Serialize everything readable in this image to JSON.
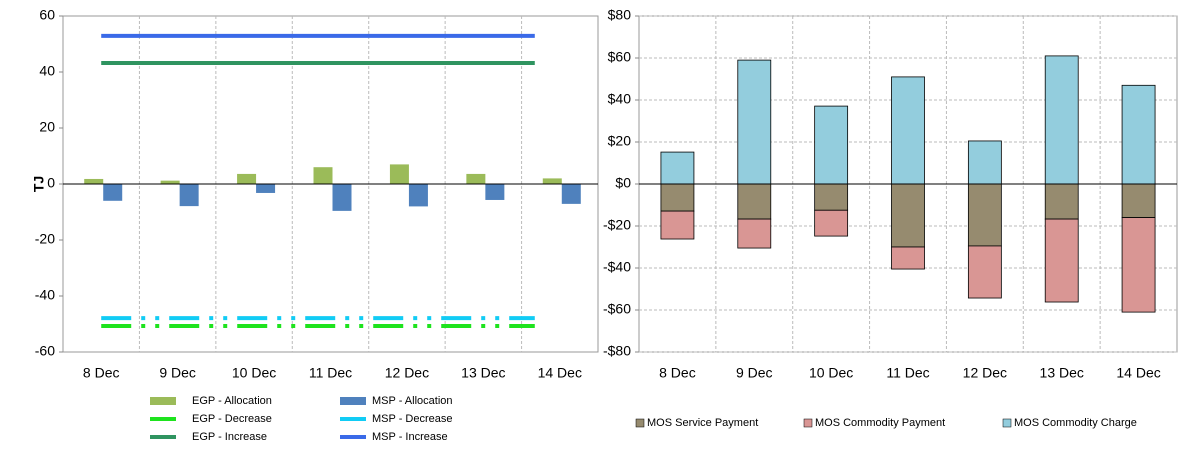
{
  "chart_data": [
    {
      "type": "bar",
      "y_label": "TJ",
      "categories": [
        "8 Dec",
        "9 Dec",
        "10 Dec",
        "11 Dec",
        "12 Dec",
        "13 Dec",
        "14 Dec"
      ],
      "ylim": [
        -60,
        60
      ],
      "yticks": [
        -60,
        -40,
        -20,
        0,
        20,
        40,
        60
      ],
      "series": [
        {
          "name": "EGP - Allocation",
          "type": "bar",
          "color": "#9bbb59",
          "values": [
            1.8,
            1.2,
            3.6,
            6,
            7,
            3.6,
            2
          ]
        },
        {
          "name": "MSP - Allocation",
          "type": "bar",
          "color": "#4f81bd",
          "values": [
            -6,
            -7.9,
            -3.2,
            -9.6,
            -8,
            -5.7,
            -7.1
          ]
        },
        {
          "name": "EGP - Decrease",
          "type": "line",
          "dashed": true,
          "color": "#1ee31e",
          "values": [
            -50.7,
            -50.7,
            -50.7,
            -50.7,
            -50.7,
            -50.7,
            -50.7
          ]
        },
        {
          "name": "MSP - Decrease",
          "type": "line",
          "dashed": true,
          "color": "#11ccf5",
          "values": [
            -47.9,
            -47.9,
            -47.9,
            -47.9,
            -47.9,
            -47.9,
            -47.9
          ]
        },
        {
          "name": "EGP - Increase",
          "type": "line",
          "color": "#2f9460",
          "values": [
            43.2,
            43.2,
            43.2,
            43.2,
            43.2,
            43.2,
            43.2
          ]
        },
        {
          "name": "MSP - Increase",
          "type": "line",
          "color": "#3a6ae8",
          "values": [
            52.9,
            52.9,
            52.9,
            52.9,
            52.9,
            52.9,
            52.9
          ]
        }
      ]
    },
    {
      "type": "stacked_bar",
      "categories": [
        "8 Dec",
        "9 Dec",
        "10 Dec",
        "11 Dec",
        "12 Dec",
        "13 Dec",
        "14 Dec"
      ],
      "ylim": [
        -80,
        80
      ],
      "yticks": [
        {
          "value": -80,
          "label": "-$80"
        },
        {
          "value": -60,
          "label": "-$60"
        },
        {
          "value": -40,
          "label": "-$40"
        },
        {
          "value": -20,
          "label": "-$20"
        },
        {
          "value": 0,
          "label": "$0"
        },
        {
          "value": 20,
          "label": "$20"
        },
        {
          "value": 40,
          "label": "$40"
        },
        {
          "value": 60,
          "label": "$60"
        },
        {
          "value": 80,
          "label": "$80"
        }
      ],
      "grid": true,
      "series": [
        {
          "name": "MOS Service Payment",
          "color": "#968b6f",
          "values": [
            -12.9,
            -16.7,
            -12.5,
            -30,
            -29.5,
            -16.7,
            -16
          ]
        },
        {
          "name": "MOS Commodity Payment",
          "color": "#d99694",
          "values": [
            -13.3,
            -13.8,
            -12.3,
            -10.5,
            -24.8,
            -39.5,
            -45
          ]
        },
        {
          "name": "MOS Commodity Charge",
          "color": "#93cddd",
          "values": [
            15.2,
            59,
            37.1,
            51,
            20.5,
            61,
            47
          ]
        }
      ]
    }
  ]
}
